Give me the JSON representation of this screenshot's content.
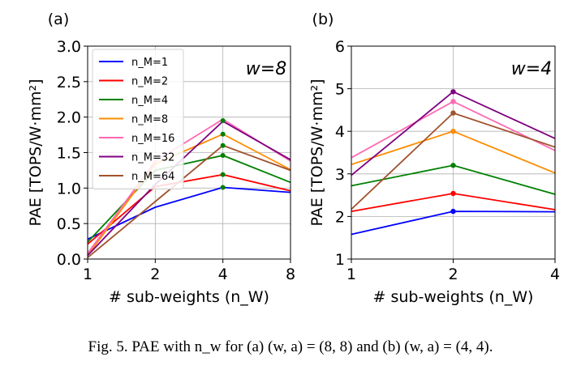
{
  "caption": "Fig. 5.  PAE with n_w for (a) (w, a) = (8, 8) and (b) (w, a) = (4, 4).",
  "chart_data": [
    {
      "type": "line",
      "panel_label": "(a)",
      "annotation": "w=8",
      "xlabel": "# sub-weights (n_W)",
      "ylabel": "PAE [TOPS/W·mm²]",
      "x": [
        1,
        2,
        4,
        8
      ],
      "x_scale": "log2",
      "xticks": [
        "1",
        "2",
        "4",
        "8"
      ],
      "ylim": [
        0.0,
        3.0
      ],
      "yticks": [
        "0.0",
        "0.5",
        "1.0",
        "1.5",
        "2.0",
        "2.5",
        "3.0"
      ],
      "grid": true,
      "legend": "top-left",
      "series": [
        {
          "name": "n_M=1",
          "color": "#0000ff",
          "values": [
            0.28,
            0.73,
            1.01,
            0.94
          ]
        },
        {
          "name": "n_M=2",
          "color": "#ff0000",
          "values": [
            0.21,
            1.02,
            1.19,
            0.96
          ]
        },
        {
          "name": "n_M=4",
          "color": "#008000",
          "values": [
            0.24,
            1.25,
            1.46,
            1.08
          ]
        },
        {
          "name": "n_M=8",
          "color": "#ff8c00",
          "values": [
            0.05,
            1.34,
            1.76,
            1.26
          ]
        },
        {
          "name": "n_M=16",
          "color": "#ff69b4",
          "values": [
            0.08,
            1.38,
            1.97,
            1.38
          ]
        },
        {
          "name": "n_M=32",
          "color": "#800080",
          "values": [
            0.05,
            1.05,
            1.94,
            1.4
          ]
        },
        {
          "name": "n_M=64",
          "color": "#a0522d",
          "values": [
            0.02,
            0.81,
            1.6,
            1.25
          ]
        }
      ]
    },
    {
      "type": "line",
      "panel_label": "(b)",
      "annotation": "w=4",
      "xlabel": "# sub-weights (n_W)",
      "ylabel": "PAE [TOPS/W·mm²]",
      "x": [
        1,
        2,
        4
      ],
      "x_scale": "log2",
      "xticks": [
        "1",
        "2",
        "4"
      ],
      "ylim": [
        1,
        6
      ],
      "yticks": [
        "1",
        "2",
        "3",
        "4",
        "5",
        "6"
      ],
      "grid": true,
      "series": [
        {
          "name": "n_M=1",
          "color": "#0000ff",
          "values": [
            1.58,
            2.12,
            2.11
          ]
        },
        {
          "name": "n_M=2",
          "color": "#ff0000",
          "values": [
            2.12,
            2.54,
            2.16
          ]
        },
        {
          "name": "n_M=4",
          "color": "#008000",
          "values": [
            2.72,
            3.2,
            2.52
          ]
        },
        {
          "name": "n_M=8",
          "color": "#ff8c00",
          "values": [
            3.22,
            4.0,
            3.02
          ]
        },
        {
          "name": "n_M=16",
          "color": "#ff69b4",
          "values": [
            3.38,
            4.7,
            3.55
          ]
        },
        {
          "name": "n_M=32",
          "color": "#800080",
          "values": [
            2.97,
            4.93,
            3.83
          ]
        },
        {
          "name": "n_M=64",
          "color": "#a0522d",
          "values": [
            2.17,
            4.43,
            3.63
          ]
        }
      ]
    }
  ]
}
